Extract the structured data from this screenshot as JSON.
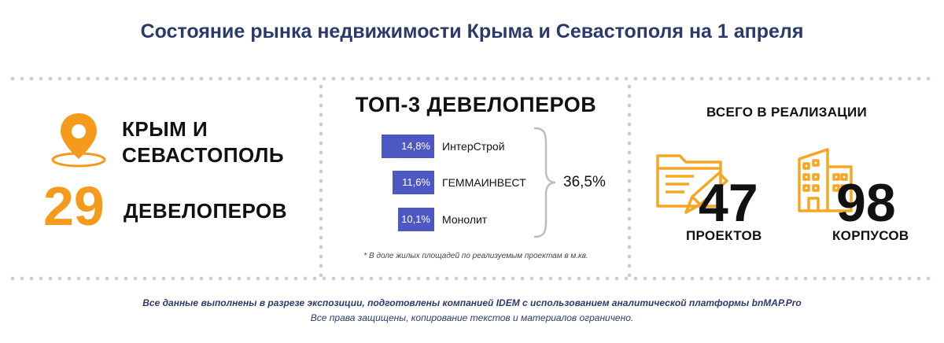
{
  "header": {
    "title": "Состояние рынка недвижимости Крыма и Севастополя на 1  апреля"
  },
  "left": {
    "region_line1": "КРЫМ И",
    "region_line2": "СЕВАСТОПОЛЬ",
    "developers_count": "29",
    "developers_label": "ДЕВЕЛОПЕРОВ",
    "icon": "location-pin-icon"
  },
  "middle": {
    "title": "ТОП-3 ДЕВЕЛОПЕРОВ",
    "developers": [
      {
        "name": "ИнтерСтрой",
        "share_label": "14,8%",
        "share": 14.8
      },
      {
        "name": "ГЕММАИНВЕСТ",
        "share_label": "11,6%",
        "share": 11.6
      },
      {
        "name": "Монолит",
        "share_label": "10,1%",
        "share": 10.1
      }
    ],
    "total": "36,5%",
    "footnote": "* В доле жилых площадей по реализуемым проектам в м.кв."
  },
  "right": {
    "title": "ВСЕГО В РЕАЛИЗАЦИИ",
    "projects_count": "47",
    "projects_label": "ПРОЕКТОВ",
    "buildings_count": "98",
    "buildings_label": "КОРПУСОВ",
    "icons": [
      "folder-icon",
      "building-icon"
    ]
  },
  "footer": {
    "line1": "Все данные выполнены в разрезе экспозиции, подготовлены компанией IDEM с использованием аналитической платформы bnMAP.Pro",
    "line2": "Все права защищены, копирование текстов и материалов ограничено."
  },
  "colors": {
    "accent": "#f59a1a",
    "bar": "#4e58c2",
    "title": "#2b3a6b"
  }
}
